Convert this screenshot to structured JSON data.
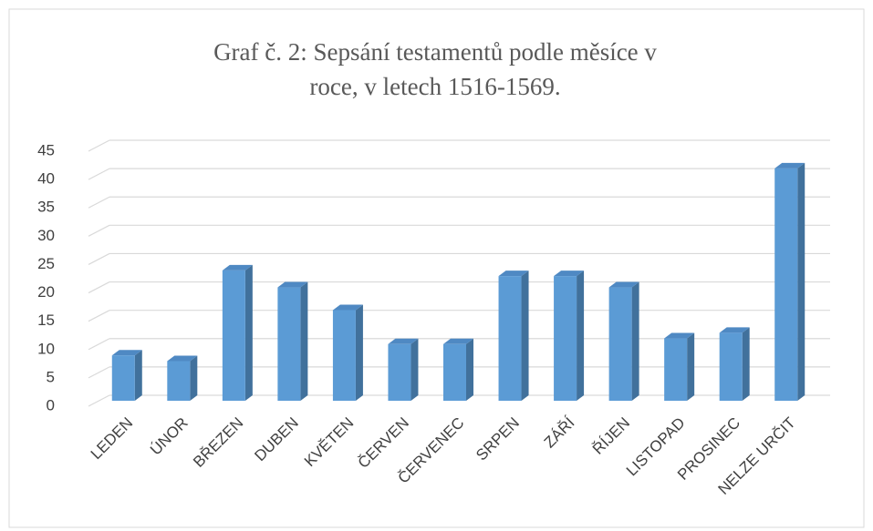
{
  "chart_data": {
    "type": "bar3d",
    "title": "Graf č. 2: Sepsání testamentů podle měsíce v roce, v letech 1516-1569.",
    "categories": [
      "LEDEN",
      "ÚNOR",
      "BŘEZEN",
      "DUBEN",
      "KVĚTEN",
      "ČERVEN",
      "ČERVENEC",
      "SRPEN",
      "ZÁŘÍ",
      "ŘÍJEN",
      "LISTOPAD",
      "PROSINEC",
      "NELZE URČIT"
    ],
    "values": [
      8,
      7,
      23,
      20,
      16,
      10,
      10,
      22,
      22,
      20,
      11,
      12,
      41
    ],
    "color": "#5b9bd5",
    "ylim": [
      0,
      45
    ],
    "yticks": [
      0,
      5,
      10,
      15,
      20,
      25,
      30,
      35,
      40,
      45
    ],
    "grid": true
  }
}
